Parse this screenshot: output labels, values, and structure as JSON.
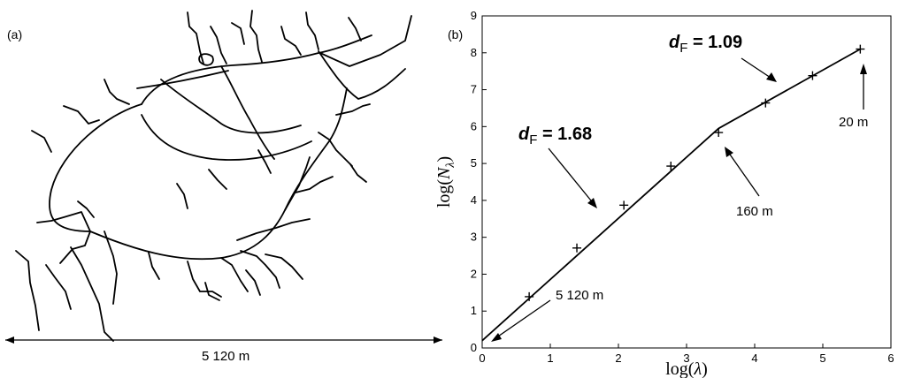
{
  "panel_a": {
    "label": "(a)",
    "scale_label": "5 120 m"
  },
  "chart_data": {
    "type": "line",
    "panel_label": "(b)",
    "xlabel": "log(λ)",
    "ylabel": "log(N_λ)",
    "xlim": [
      0,
      6
    ],
    "ylim": [
      0,
      9
    ],
    "x_ticks": [
      "0",
      "1",
      "2",
      "3",
      "4",
      "5",
      "6"
    ],
    "y_ticks": [
      "0",
      "1",
      "2",
      "3",
      "4",
      "5",
      "6",
      "7",
      "8",
      "9"
    ],
    "series": [
      {
        "points": [
          {
            "x": 0.69,
            "y": 1.39
          },
          {
            "x": 1.39,
            "y": 2.71
          },
          {
            "x": 2.08,
            "y": 3.87
          },
          {
            "x": 2.77,
            "y": 4.93
          },
          {
            "x": 3.47,
            "y": 5.84
          },
          {
            "x": 4.16,
            "y": 6.64
          },
          {
            "x": 4.85,
            "y": 7.38
          },
          {
            "x": 5.55,
            "y": 8.1
          }
        ]
      }
    ],
    "fit_lines": [
      {
        "x": [
          0,
          3.47
        ],
        "y": [
          0.2,
          5.95
        ]
      },
      {
        "x": [
          3.47,
          5.55
        ],
        "y": [
          5.95,
          8.1
        ]
      }
    ],
    "annotations": [
      {
        "symbol": "d",
        "subscript": "F",
        "text": " = 1.68"
      },
      {
        "symbol": "d",
        "subscript": "F",
        "text": " = 1.09"
      },
      {
        "text": "20 m"
      },
      {
        "text": "160 m"
      },
      {
        "text": "5 120 m"
      }
    ]
  }
}
